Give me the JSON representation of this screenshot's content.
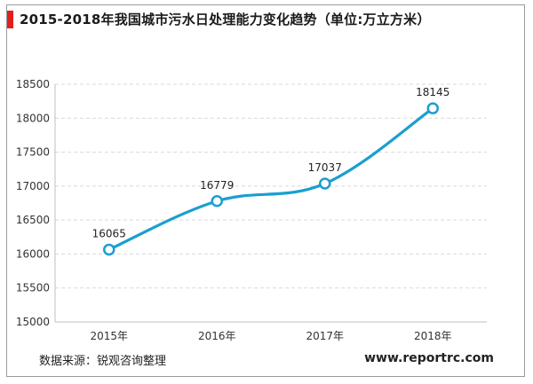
{
  "title": "2015-2018年我国城市污水日处理能力变化趋势（单位:万立方米）",
  "source": "数据来源：锐观咨询整理",
  "website": "www.reportrc.com",
  "colors": {
    "line": "#1a9fd0",
    "marker_fill": "#ffffff",
    "grid": "#d9d9d9",
    "accent": "#e02020"
  },
  "chart_data": {
    "type": "line",
    "title": "",
    "xlabel": "",
    "ylabel": "",
    "categories": [
      "2015年",
      "2016年",
      "2017年",
      "2018年"
    ],
    "values": [
      16065,
      16779,
      17037,
      18145
    ],
    "data_labels": [
      "16065",
      "16779",
      "17037",
      "18145"
    ],
    "ylim": [
      15000,
      18500
    ],
    "y_ticks": [
      15000,
      15500,
      16000,
      16500,
      17000,
      17500,
      18000,
      18500
    ],
    "y_tick_labels": [
      "15000",
      "15500",
      "16000",
      "16500",
      "17000",
      "17500",
      "18000",
      "18500"
    ],
    "grid": true,
    "legend": "none",
    "smooth": true
  }
}
